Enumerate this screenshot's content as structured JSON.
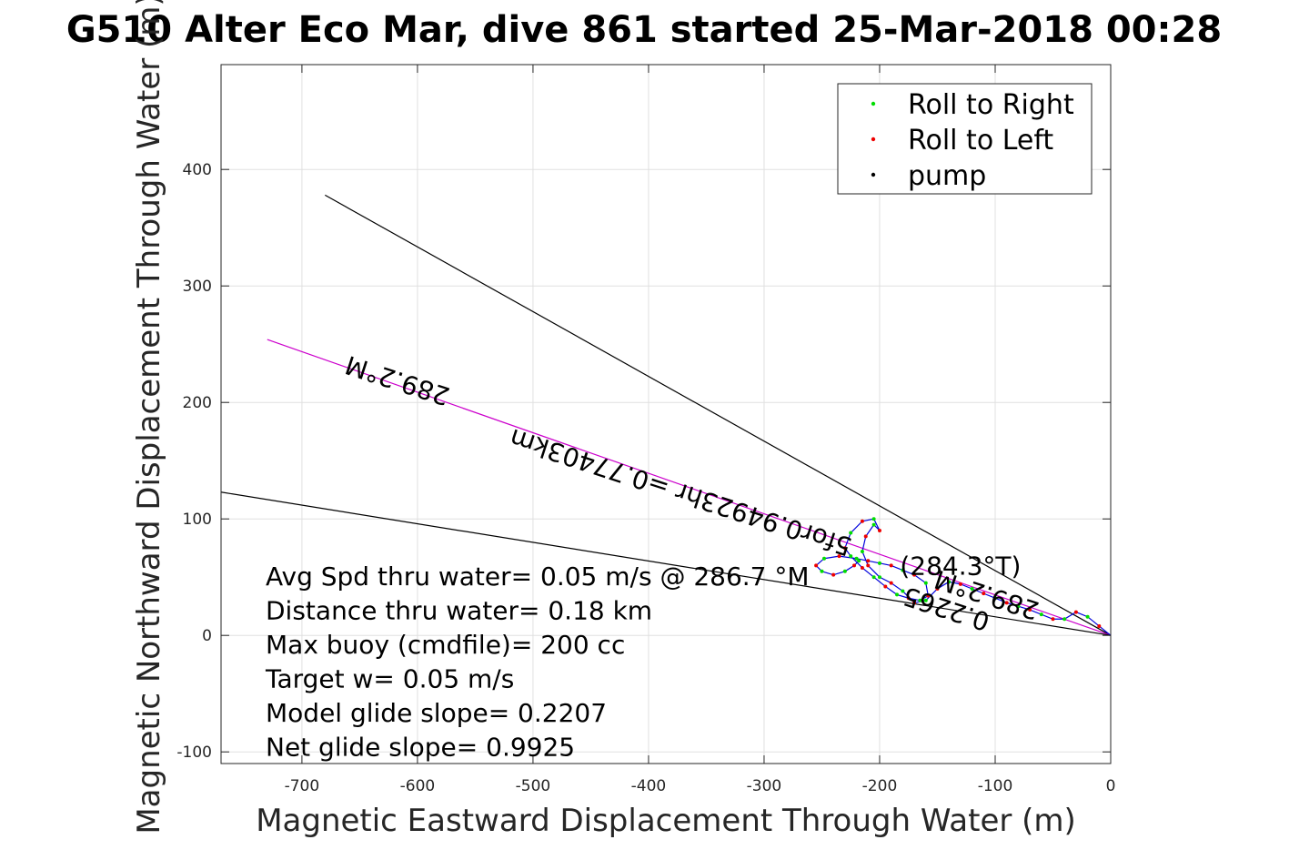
{
  "chart_data": {
    "type": "line",
    "title": "G510 Alter Eco Mar, dive 861 started 25-Mar-2018 00:28",
    "xlabel": "Magnetic Eastward Displacement Through Water (m)",
    "ylabel": "Magnetic Northward Displacement Through Water (m)",
    "xlim": [
      -770,
      0
    ],
    "ylim": [
      -110,
      490
    ],
    "xticks": [
      -700,
      -600,
      -500,
      -400,
      -300,
      -200,
      -100,
      0
    ],
    "yticks": [
      -100,
      0,
      100,
      200,
      300,
      400
    ],
    "grid": true,
    "legend_position": "top-right",
    "legend": [
      {
        "label": "Roll to Right",
        "color": "#00dd00"
      },
      {
        "label": "Roll to Left",
        "color": "#ee0000"
      },
      {
        "label": "pump",
        "color": "#000000"
      }
    ],
    "reference_lines": [
      {
        "name": "upper-bound",
        "color": "#000000",
        "x": [
          0,
          -680
        ],
        "y": [
          0,
          378
        ]
      },
      {
        "name": "heading-289.2",
        "color": "#cc00cc",
        "x": [
          0,
          -730
        ],
        "y": [
          0,
          254
        ]
      },
      {
        "name": "lower-bound",
        "color": "#000000",
        "x": [
          0,
          -770
        ],
        "y": [
          0,
          123
        ]
      }
    ],
    "track": {
      "color": "#0000dd",
      "x": [
        0,
        -10,
        -20,
        -30,
        -40,
        -50,
        -60,
        -70,
        -80,
        -90,
        -100,
        -110,
        -120,
        -130,
        -140,
        -150,
        -160,
        -170,
        -180,
        -190,
        -200,
        -210,
        -215,
        -212,
        -205,
        -200,
        -205,
        -215,
        -225,
        -230,
        -225,
        -215,
        -205,
        -195,
        -185,
        -175,
        -165,
        -158,
        -160,
        -170,
        -180,
        -190,
        -200,
        -210,
        -220,
        -235,
        -248,
        -255,
        -250,
        -240,
        -230,
        -222,
        -218
      ],
      "y": [
        0,
        8,
        16,
        20,
        14,
        14,
        18,
        22,
        25,
        28,
        32,
        36,
        40,
        44,
        46,
        40,
        30,
        28,
        38,
        45,
        50,
        60,
        72,
        85,
        95,
        90,
        100,
        98,
        88,
        75,
        68,
        58,
        50,
        42,
        35,
        32,
        30,
        34,
        45,
        52,
        56,
        60,
        62,
        64,
        66,
        68,
        66,
        60,
        55,
        52,
        55,
        60,
        64
      ]
    },
    "annotations": [
      {
        "text": "289.2°M",
        "x": -615,
        "y": 226,
        "rotation_deg": 198
      },
      {
        "text": "289.2°M",
        "x": -105,
        "y": 42,
        "rotation_deg": 198
      },
      {
        "text": "5for0.94923hr =0.77403km",
        "x": -370,
        "y": 130,
        "rotation_deg": 198
      },
      {
        "text": "0.2265",
        "x": -140,
        "y": 30,
        "rotation_deg": 198
      },
      {
        "text": "(284.3°T)",
        "x": -130,
        "y": 52,
        "rotation_deg": 0
      }
    ],
    "stats": [
      "Avg Spd thru water=  0.05 m/s @ 286.7 °M ",
      "Distance thru water=  0.18 km",
      "Max buoy (cmdfile)= 200 cc",
      "Target w= 0.05 m/s",
      "Model glide slope= 0.2207",
      "Net glide slope= 0.9925"
    ]
  }
}
